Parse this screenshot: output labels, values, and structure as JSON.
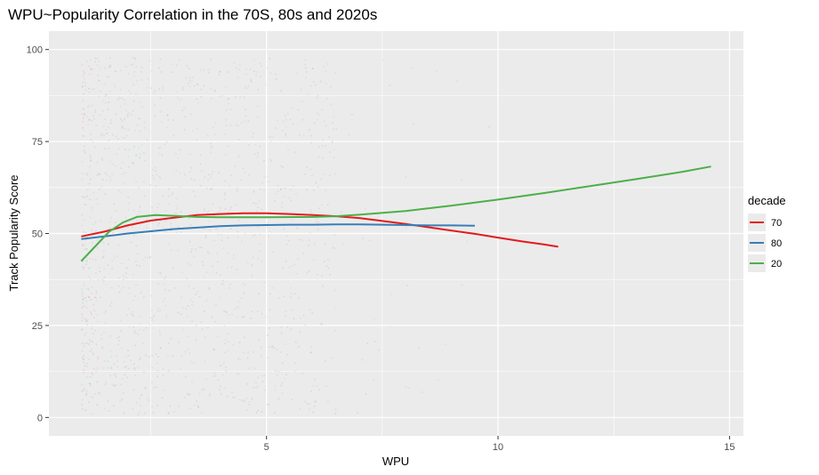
{
  "chart_data": {
    "type": "scatter",
    "title": "WPU~Popularity Correlation in the 70S, 80s and 2020s",
    "xlabel": "WPU",
    "ylabel": "Track Popularity Score",
    "xlim": [
      0.3,
      15.3
    ],
    "ylim": [
      -5,
      105
    ],
    "x_ticks": [
      5,
      10,
      15
    ],
    "y_ticks": [
      0,
      25,
      50,
      75,
      100
    ],
    "grid": true,
    "panel_background": "#ebebeb",
    "grid_color": "#ffffff",
    "legend": {
      "title": "decade",
      "position": "right",
      "entries": [
        "70",
        "80",
        "20"
      ]
    },
    "series": [
      {
        "name": "70",
        "color": "#e41a1c",
        "smooth_x": [
          1.0,
          1.5,
          2.0,
          2.5,
          3.0,
          3.5,
          4.0,
          4.5,
          5.0,
          5.5,
          6.0,
          6.5,
          7.0,
          7.5,
          8.0,
          8.5,
          9.0,
          9.5,
          10.0,
          10.5,
          11.0,
          11.3
        ],
        "smooth_y": [
          49.2,
          50.5,
          52.2,
          53.5,
          54.3,
          55.0,
          55.3,
          55.5,
          55.5,
          55.3,
          55.0,
          54.7,
          54.2,
          53.4,
          52.6,
          51.7,
          50.8,
          49.9,
          48.9,
          47.9,
          47.0,
          46.4
        ]
      },
      {
        "name": "80",
        "color": "#377eb8",
        "smooth_x": [
          1.0,
          1.5,
          2.0,
          2.5,
          3.0,
          3.5,
          4.0,
          4.5,
          5.0,
          5.5,
          6.0,
          6.5,
          7.0,
          7.5,
          8.0,
          8.5,
          9.0,
          9.5
        ],
        "smooth_y": [
          48.5,
          49.2,
          50.0,
          50.6,
          51.2,
          51.6,
          52.0,
          52.2,
          52.3,
          52.4,
          52.4,
          52.5,
          52.5,
          52.4,
          52.3,
          52.2,
          52.2,
          52.1
        ]
      },
      {
        "name": "20",
        "color": "#4daf4a",
        "smooth_x": [
          1.0,
          1.3,
          1.6,
          1.9,
          2.2,
          2.6,
          3.0,
          3.5,
          4.0,
          5.0,
          6.0,
          6.5,
          7.0,
          8.0,
          9.0,
          10.0,
          11.0,
          12.0,
          13.0,
          14.0,
          14.6
        ],
        "smooth_y": [
          42.5,
          46.5,
          50.5,
          53.0,
          54.5,
          55.0,
          54.8,
          54.5,
          54.4,
          54.4,
          54.5,
          54.7,
          55.1,
          56.1,
          57.6,
          59.2,
          61.0,
          62.9,
          64.8,
          66.8,
          68.2
        ]
      }
    ]
  }
}
